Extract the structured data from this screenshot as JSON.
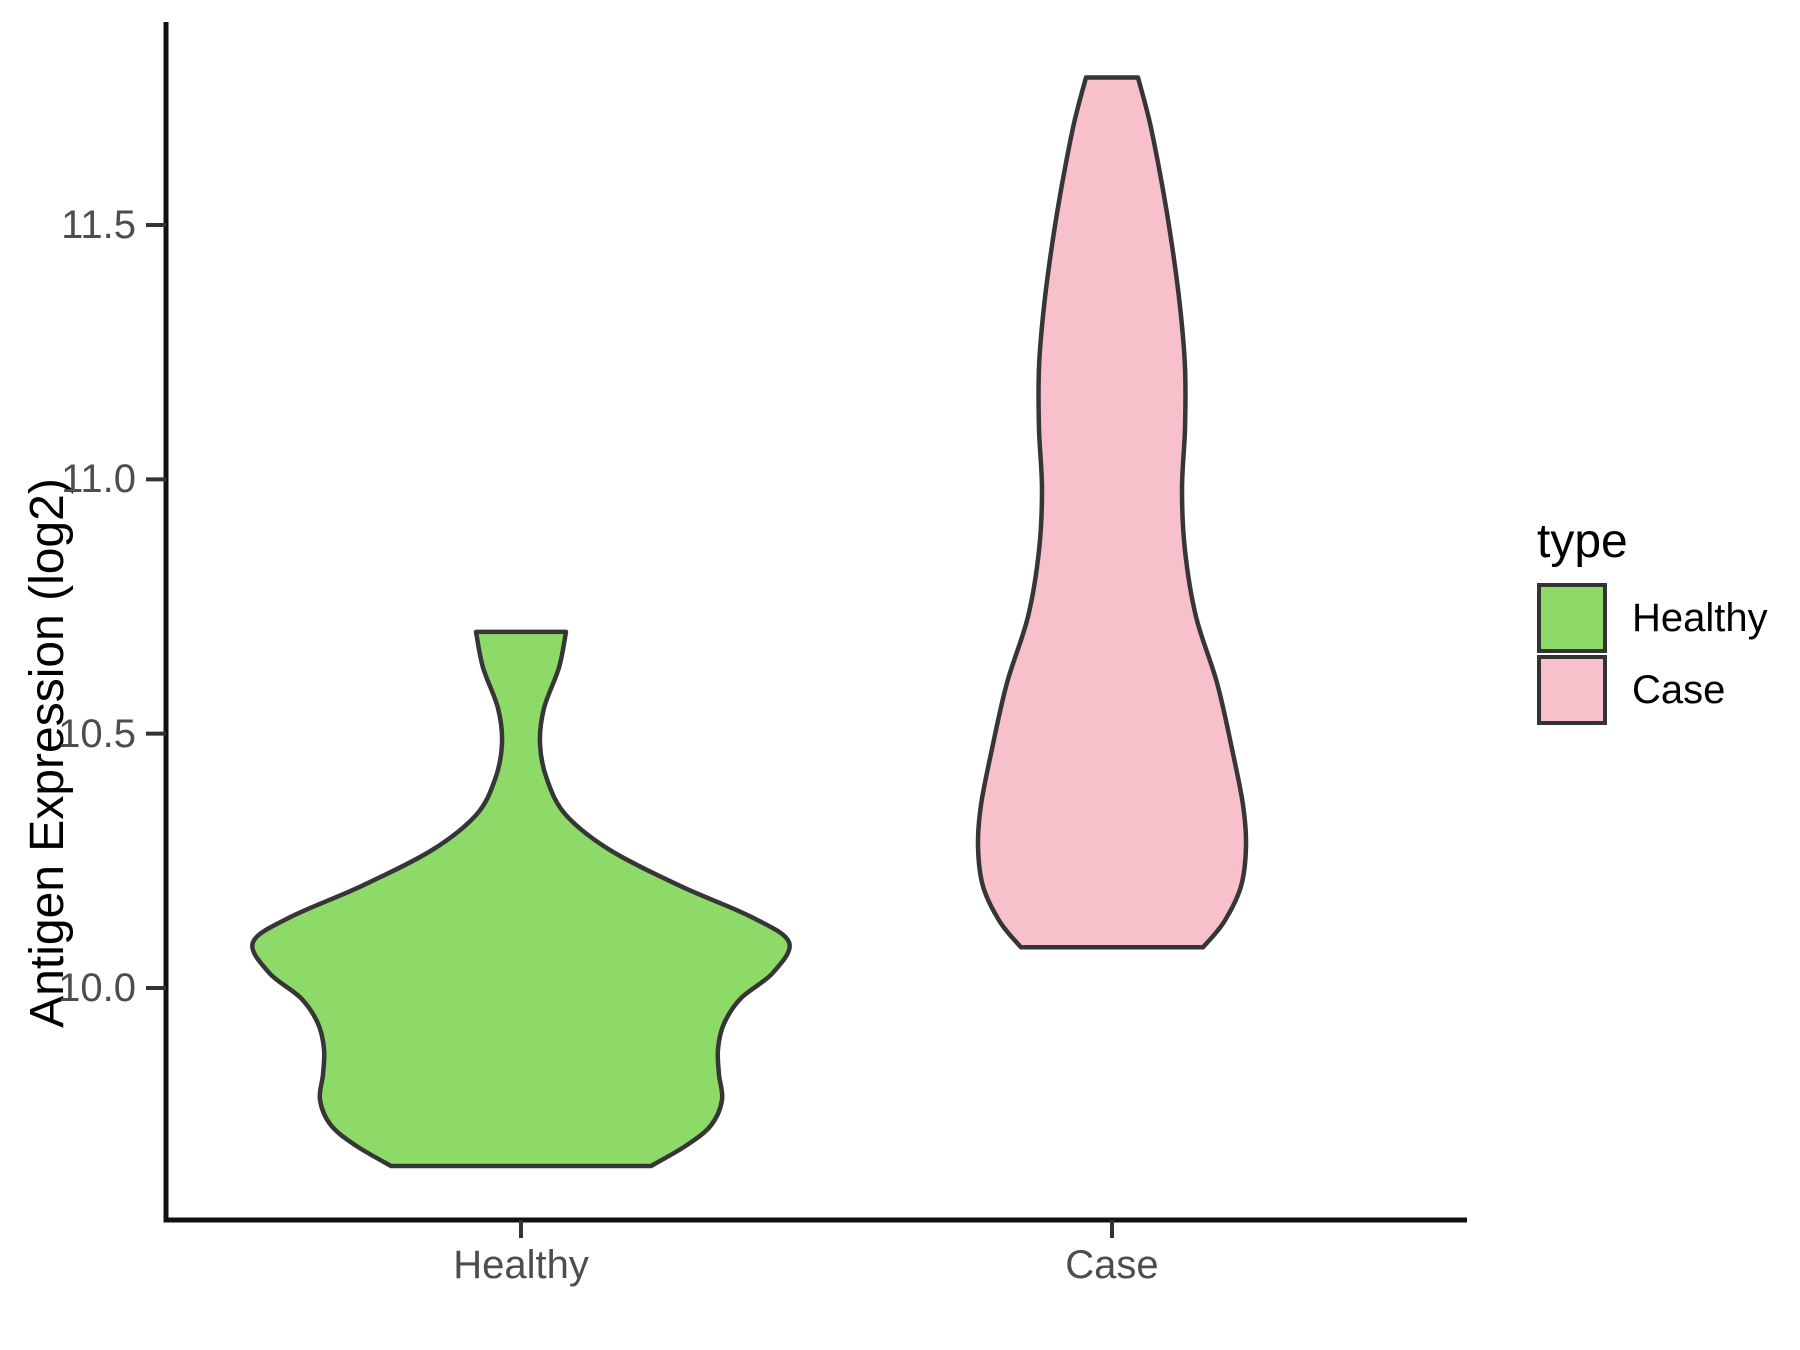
{
  "chart_data": {
    "type": "violin",
    "title": "",
    "xlabel": "",
    "ylabel": "Antigen Expression (log2)",
    "categories": [
      "Healthy",
      "Case"
    ],
    "y_ticks": [
      {
        "label": "11.5",
        "value": 11.5
      },
      {
        "label": "11.0",
        "value": 11.0
      },
      {
        "label": "10.5",
        "value": 10.5
      },
      {
        "label": "10.0",
        "value": 10.0
      }
    ],
    "ylim_shown": [
      9.55,
      11.9
    ],
    "grid": "off",
    "legend_position": "right",
    "profile_units": "[y_value, halfwidth_px]",
    "series": [
      {
        "name": "Healthy",
        "fill": "#8EDA68",
        "outline": "#363636",
        "y_min": 9.65,
        "y_max": 10.7,
        "profile": [
          [
            10.7,
            45
          ],
          [
            10.63,
            38
          ],
          [
            10.55,
            23
          ],
          [
            10.48,
            19
          ],
          [
            10.41,
            26
          ],
          [
            10.34,
            45
          ],
          [
            10.27,
            90
          ],
          [
            10.2,
            160
          ],
          [
            10.14,
            230
          ],
          [
            10.09,
            268
          ],
          [
            10.03,
            252
          ],
          [
            9.98,
            220
          ],
          [
            9.93,
            203
          ],
          [
            9.88,
            197
          ],
          [
            9.83,
            198
          ],
          [
            9.78,
            201
          ],
          [
            9.73,
            190
          ],
          [
            9.69,
            165
          ],
          [
            9.65,
            130
          ]
        ]
      },
      {
        "name": "Case",
        "fill": "#F8C0CB",
        "outline": "#363636",
        "y_min": 10.08,
        "y_max": 11.79,
        "profile": [
          [
            11.79,
            26
          ],
          [
            11.7,
            38
          ],
          [
            11.58,
            50
          ],
          [
            11.46,
            60
          ],
          [
            11.34,
            68
          ],
          [
            11.22,
            73
          ],
          [
            11.1,
            73
          ],
          [
            10.98,
            70
          ],
          [
            10.86,
            73
          ],
          [
            10.73,
            84
          ],
          [
            10.6,
            105
          ],
          [
            10.47,
            120
          ],
          [
            10.36,
            131
          ],
          [
            10.28,
            134
          ],
          [
            10.2,
            129
          ],
          [
            10.13,
            112
          ],
          [
            10.08,
            91
          ]
        ]
      }
    ]
  },
  "legend": {
    "title": "type",
    "entries": [
      {
        "label": "Healthy",
        "color": "#8EDA68"
      },
      {
        "label": "Case",
        "color": "#F8C0CB"
      }
    ]
  },
  "colors": {
    "axis_line": "#111111",
    "tick_mark": "#333333",
    "tick_text": "#4D4D4D",
    "title_text": "#000000",
    "background": "#FFFFFF"
  }
}
